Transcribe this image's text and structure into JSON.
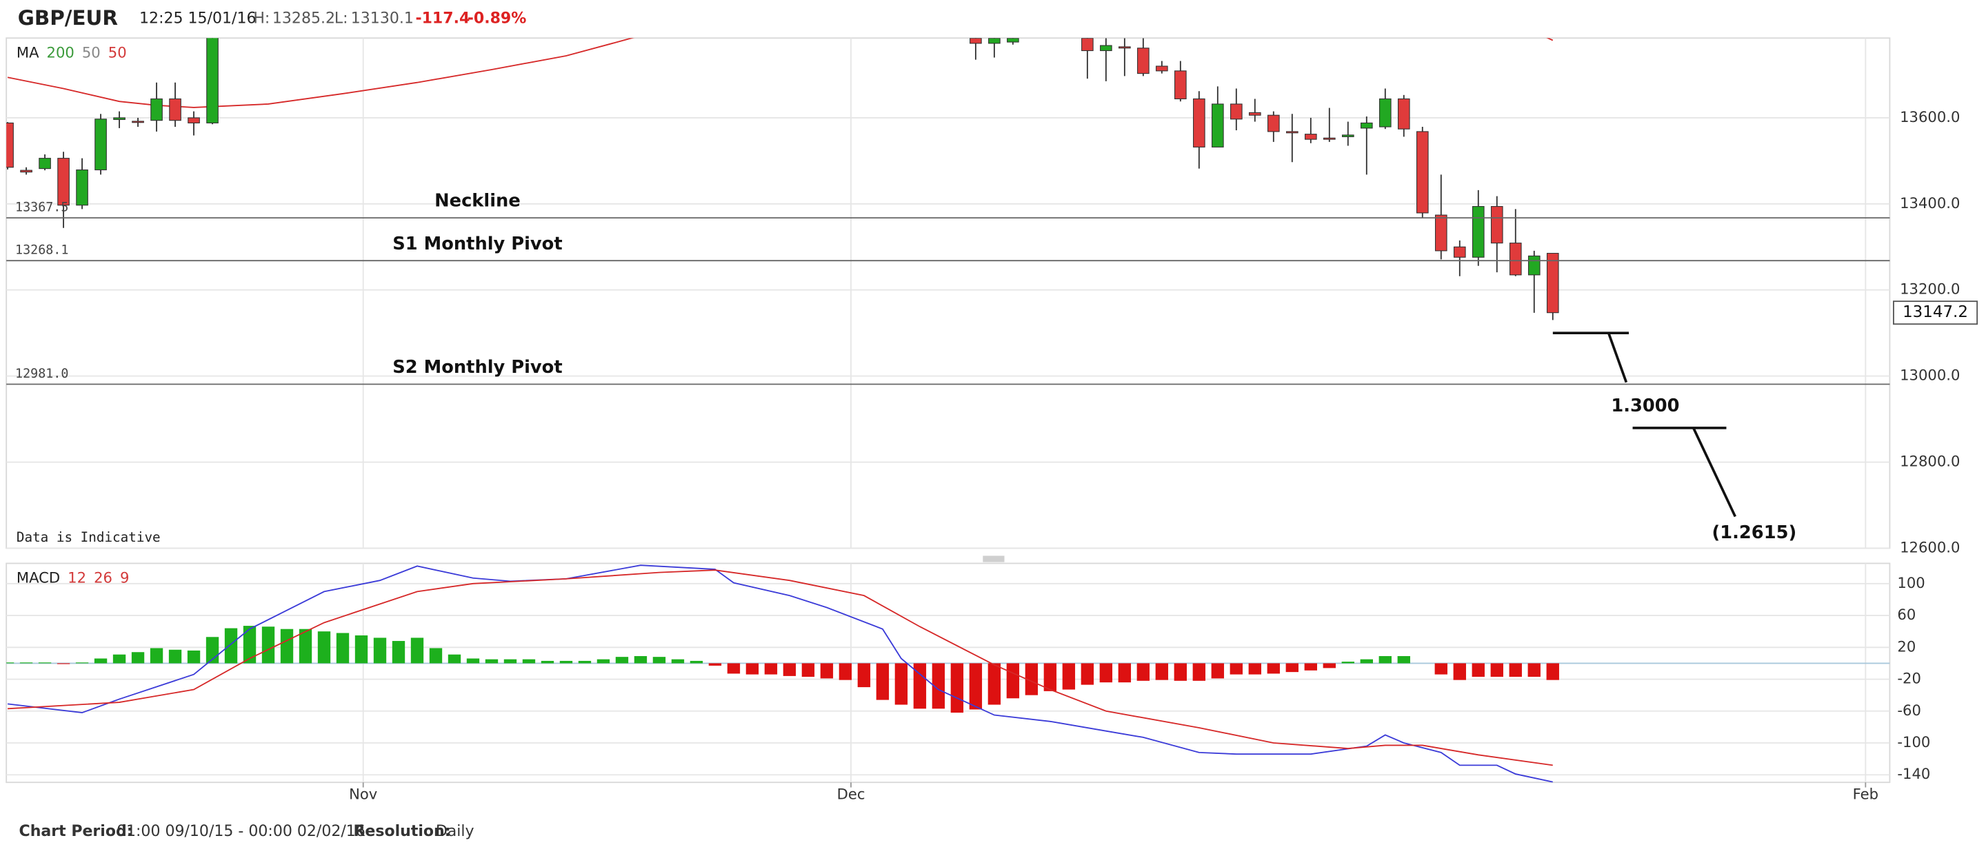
{
  "header": {
    "symbol": "GBP/EUR",
    "time": "12:25 15/01/16",
    "high_label": "H:",
    "high": 13285.2,
    "low_label": "L:",
    "low": 13130.1,
    "change": -117.4,
    "change_pct": "-0.89%"
  },
  "footer": {
    "period_label": "Chart Period:",
    "period": "01:00 09/10/15 - 00:00 02/02/16",
    "resolution_label": "Resolution:",
    "resolution": "Daily"
  },
  "chart_data": [
    {
      "type": "candlestick",
      "note": "Data is Indicative",
      "legend": {
        "label": "MA",
        "params": [
          "200",
          "50",
          "50"
        ],
        "param_colors": [
          "#3a9a3a",
          "#888888",
          "#d33a3a"
        ]
      },
      "xlim": [
        -0.07,
        101.1
      ],
      "ylim": [
        12600,
        13785.3
      ],
      "yticks": [
        {
          "value": 12600,
          "label": "12600.0"
        },
        {
          "value": 12800,
          "label": "12800.0"
        },
        {
          "value": 13000,
          "label": "13000.0"
        },
        {
          "value": 13200,
          "label": "13200.0"
        },
        {
          "value": 13400,
          "label": "13400.0"
        },
        {
          "value": 13600,
          "label": "13600.0"
        }
      ],
      "grid": true,
      "up_color": "#22a822",
      "down_color": "#e03b3b",
      "levels": [
        {
          "label": "Neckline",
          "value": 13367.5
        },
        {
          "label": "S1 Monthly Pivot",
          "value": 13268.1
        },
        {
          "label": "S2 Monthly Pivot",
          "value": 12981.0,
          "value_label": "12981.0"
        }
      ],
      "annotations": [
        "1.3000",
        "(1.2615)"
      ],
      "candles": [
        {
          "x": 0,
          "open": 13588,
          "high": 13590,
          "low": 13480,
          "close": 13485
        },
        {
          "x": 1,
          "open": 13478,
          "high": 13485,
          "low": 13468,
          "close": 13474
        },
        {
          "x": 2,
          "open": 13482,
          "high": 13515,
          "low": 13478,
          "close": 13506
        },
        {
          "x": 3,
          "open": 13506,
          "high": 13521,
          "low": 13344,
          "close": 13397
        },
        {
          "x": 4,
          "open": 13397,
          "high": 13506,
          "low": 13388,
          "close": 13479
        },
        {
          "x": 5,
          "open": 13479,
          "high": 13609,
          "low": 13468,
          "close": 13597
        },
        {
          "x": 6,
          "open": 13596,
          "high": 13615,
          "low": 13576,
          "close": 13600
        },
        {
          "x": 7,
          "open": 13592,
          "high": 13600,
          "low": 13579,
          "close": 13590
        },
        {
          "x": 8,
          "open": 13594,
          "high": 13682,
          "low": 13568,
          "close": 13644
        },
        {
          "x": 9,
          "open": 13644,
          "high": 13682,
          "low": 13579,
          "close": 13594
        },
        {
          "x": 10,
          "open": 13600,
          "high": 13615,
          "low": 13559,
          "close": 13588
        },
        {
          "x": 11,
          "open": 13588,
          "high": 13800,
          "low": 13585,
          "close": 13790
        },
        {
          "x": 52,
          "open": 13785,
          "high": 13790,
          "low": 13735,
          "close": 13773
        },
        {
          "x": 53,
          "open": 13773,
          "high": 13790,
          "low": 13740,
          "close": 13785
        },
        {
          "x": 54,
          "open": 13776,
          "high": 13790,
          "low": 13770,
          "close": 13785
        },
        {
          "x": 58,
          "open": 13785,
          "high": 13790,
          "low": 13691,
          "close": 13756
        },
        {
          "x": 59,
          "open": 13756,
          "high": 13785,
          "low": 13685,
          "close": 13768
        },
        {
          "x": 60,
          "open": 13765,
          "high": 13785,
          "low": 13697,
          "close": 13762
        },
        {
          "x": 61,
          "open": 13762,
          "high": 13785,
          "low": 13697,
          "close": 13703
        },
        {
          "x": 62,
          "open": 13720,
          "high": 13732,
          "low": 13703,
          "close": 13709
        },
        {
          "x": 63,
          "open": 13709,
          "high": 13732,
          "low": 13638,
          "close": 13644
        },
        {
          "x": 64,
          "open": 13644,
          "high": 13662,
          "low": 13482,
          "close": 13532
        },
        {
          "x": 65,
          "open": 13532,
          "high": 13673,
          "low": 13532,
          "close": 13632
        },
        {
          "x": 66,
          "open": 13632,
          "high": 13668,
          "low": 13571,
          "close": 13597
        },
        {
          "x": 67,
          "open": 13612,
          "high": 13644,
          "low": 13591,
          "close": 13606
        },
        {
          "x": 68,
          "open": 13606,
          "high": 13615,
          "low": 13544,
          "close": 13568
        },
        {
          "x": 69,
          "open": 13568,
          "high": 13609,
          "low": 13497,
          "close": 13565
        },
        {
          "x": 70,
          "open": 13562,
          "high": 13600,
          "low": 13541,
          "close": 13550
        },
        {
          "x": 71,
          "open": 13553,
          "high": 13623,
          "low": 13544,
          "close": 13550
        },
        {
          "x": 72,
          "open": 13556,
          "high": 13591,
          "low": 13535,
          "close": 13560
        },
        {
          "x": 73,
          "open": 13576,
          "high": 13603,
          "low": 13468,
          "close": 13588
        },
        {
          "x": 74,
          "open": 13579,
          "high": 13668,
          "low": 13574,
          "close": 13644
        },
        {
          "x": 75,
          "open": 13644,
          "high": 13653,
          "low": 13556,
          "close": 13574
        },
        {
          "x": 76,
          "open": 13568,
          "high": 13579,
          "low": 13368,
          "close": 13379
        },
        {
          "x": 77,
          "open": 13374,
          "high": 13468,
          "low": 13271,
          "close": 13291
        },
        {
          "x": 78,
          "open": 13300,
          "high": 13315,
          "low": 13232,
          "close": 13276
        },
        {
          "x": 79,
          "open": 13276,
          "high": 13432,
          "low": 13256,
          "close": 13394
        },
        {
          "x": 80,
          "open": 13394,
          "high": 13418,
          "low": 13241,
          "close": 13309
        },
        {
          "x": 81,
          "open": 13309,
          "high": 13388,
          "low": 13232,
          "close": 13235
        },
        {
          "x": 82,
          "open": 13235,
          "high": 13291,
          "low": 13147,
          "close": 13279
        },
        {
          "x": 83,
          "open": 13285.2,
          "high": 13285.2,
          "low": 13130.1,
          "close": 13147.2
        }
      ],
      "series": [
        {
          "color": "#d62828",
          "x": [
            0,
            3,
            6,
            8,
            10,
            14,
            18,
            22,
            26,
            30,
            33,
            34,
            35,
            82,
            83
          ],
          "values": [
            13694,
            13668,
            13638,
            13629,
            13624,
            13632,
            13656,
            13682,
            13712,
            13744,
            13779,
            13791,
            null,
            13800,
            13780
          ]
        }
      ]
    },
    {
      "type": "macd",
      "legend": {
        "label": "MACD",
        "params": [
          "12",
          "26",
          "9"
        ],
        "param_colors": [
          "#d33a3a",
          "#d33a3a",
          "#d33a3a"
        ]
      },
      "xlim": [
        -0.07,
        101.1
      ],
      "xticks": [
        {
          "value": 19.1,
          "label": "Nov"
        },
        {
          "value": 45.3,
          "label": "Dec"
        },
        {
          "value": 99.8,
          "label": "Feb"
        }
      ],
      "ylim": [
        -149.5,
        125.4
      ],
      "yticks": [
        -140,
        -100,
        -60,
        -20,
        20,
        60,
        100
      ],
      "grid": true,
      "up_color": "#1db01d",
      "down_color": "#dd1111",
      "zero_color": "#a9c8dc",
      "histogram": {
        "x": [
          0,
          1,
          2,
          3,
          4,
          5,
          6,
          7,
          8,
          9,
          10,
          11,
          12,
          13,
          14,
          15,
          16,
          17,
          18,
          19,
          20,
          21,
          22,
          23,
          24,
          25,
          26,
          27,
          28,
          29,
          30,
          31,
          32,
          33,
          34,
          35,
          36,
          37,
          38,
          39,
          40,
          41,
          42,
          43,
          44,
          45,
          46,
          47,
          48,
          49,
          50,
          51,
          52,
          53,
          54,
          55,
          56,
          57,
          58,
          59,
          60,
          61,
          62,
          63,
          64,
          65,
          66,
          67,
          68,
          69,
          70,
          71,
          72,
          73,
          74,
          75,
          76,
          77,
          78,
          79,
          80,
          81,
          82,
          83
        ],
        "values": [
          1,
          1,
          1,
          -1,
          1,
          6,
          11,
          14,
          19,
          17,
          16,
          33,
          44,
          47,
          46,
          43,
          43,
          40,
          38,
          35,
          32,
          28,
          32,
          19,
          11,
          6,
          5,
          5,
          5,
          3,
          3,
          3,
          5,
          8,
          9,
          8,
          5,
          3,
          -3,
          -13,
          -14,
          -14,
          -16,
          -17,
          -19,
          -21,
          -30,
          -46,
          -52,
          -57,
          -57,
          -62,
          -58,
          -52,
          -44,
          -40,
          -35,
          -33,
          -27,
          -24,
          -24,
          -22,
          -21,
          -22,
          -22,
          -19,
          -14,
          -14,
          -13,
          -11,
          -9,
          -6,
          2,
          5,
          9,
          9,
          0,
          -14,
          -21,
          -17,
          -17,
          -17,
          -17,
          -21
        ]
      },
      "series": [
        {
          "color": "#3b3bd8",
          "x": [
            0,
            4,
            6,
            10,
            13,
            17,
            20,
            22,
            25,
            27,
            30,
            34,
            38,
            39,
            42,
            44,
            47,
            48,
            50,
            53,
            56,
            59,
            61,
            64,
            66,
            70,
            73,
            74,
            75,
            77,
            78,
            80,
            81,
            83
          ],
          "values": [
            -51,
            -62,
            -45,
            -14,
            43,
            90,
            104,
            122,
            107,
            103,
            106,
            123,
            118,
            101,
            85,
            70,
            43,
            6,
            -33,
            -65,
            -73,
            -85,
            -93,
            -112,
            -114,
            -114,
            -104,
            -90,
            -100,
            -112,
            -128,
            -128,
            -139,
            -149
          ]
        },
        {
          "color": "#d62828",
          "x": [
            0,
            6,
            10,
            13,
            17,
            22,
            25,
            30,
            35,
            38,
            42,
            46,
            49,
            53,
            56,
            59,
            64,
            68,
            72,
            74,
            76,
            79,
            83
          ],
          "values": [
            -57,
            -49,
            -33,
            6,
            51,
            90,
            100,
            106,
            114,
            117,
            104,
            85,
            46,
            -2,
            -33,
            -60,
            -81,
            -100,
            -107,
            -103,
            -103,
            -115,
            -128
          ]
        }
      ]
    }
  ]
}
